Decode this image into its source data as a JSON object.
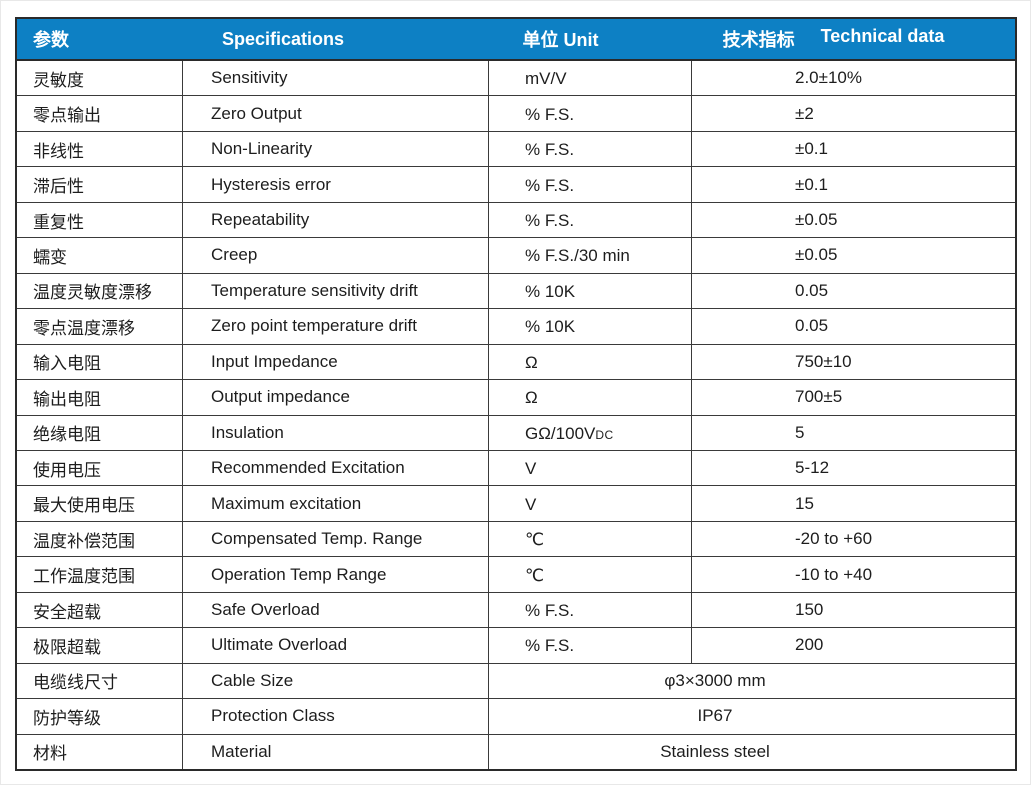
{
  "table": {
    "header": {
      "param_zh": "参数",
      "specifications": "Specifications",
      "unit": "单位 Unit",
      "tech_zh": "技术指标",
      "tech_en": "Technical data"
    },
    "colors": {
      "header_bg": "#0d80c4",
      "header_text": "#ffffff",
      "border": "#3a3a3a",
      "text": "#1d1d1d"
    },
    "rows": [
      {
        "zh": "灵敏度",
        "en": "Sensitivity",
        "unit": "mV/V",
        "value": "2.0±10%"
      },
      {
        "zh": "零点输出",
        "en": "Zero Output",
        "unit": "% F.S.",
        "value": "±2"
      },
      {
        "zh": "非线性",
        "en": "Non-Linearity",
        "unit": "% F.S.",
        "value": "±0.1"
      },
      {
        "zh": "滞后性",
        "en": "Hysteresis error",
        "unit": "% F.S.",
        "value": "±0.1"
      },
      {
        "zh": "重复性",
        "en": "Repeatability",
        "unit": "% F.S.",
        "value": "±0.05"
      },
      {
        "zh": "蠕变",
        "en": "Creep",
        "unit": "% F.S./30 min",
        "value": "±0.05"
      },
      {
        "zh": "温度灵敏度漂移",
        "en": "Temperature sensitivity drift",
        "unit": "% 10K",
        "value": "0.05"
      },
      {
        "zh": "零点温度漂移",
        "en": "Zero point temperature drift",
        "unit": "% 10K",
        "value": "0.05"
      },
      {
        "zh": "输入电阻",
        "en": "Input Impedance",
        "unit": "Ω",
        "value": "750±10"
      },
      {
        "zh": "输出电阻",
        "en": "Output impedance",
        "unit": "Ω",
        "value": "700±5"
      },
      {
        "zh": "绝缘电阻",
        "en": "Insulation",
        "unit": "GΩ/100V",
        "unit_sub": "DC",
        "value": "5"
      },
      {
        "zh": "使用电压",
        "en": "Recommended Excitation",
        "unit": "V",
        "value": "5-12"
      },
      {
        "zh": "最大使用电压",
        "en": "Maximum excitation",
        "unit": "V",
        "value": "15"
      },
      {
        "zh": "温度补偿范围",
        "en": "Compensated Temp. Range",
        "unit": "℃",
        "value": "-20 to +60"
      },
      {
        "zh": "工作温度范围",
        "en": "Operation Temp Range",
        "unit": "℃",
        "value": "-10 to +40"
      },
      {
        "zh": "安全超载",
        "en": "Safe Overload",
        "unit": "% F.S.",
        "value": "150"
      },
      {
        "zh": "极限超载",
        "en": "Ultimate Overload",
        "unit": "% F.S.",
        "value": "200"
      },
      {
        "zh": "电缆线尺寸",
        "en": "Cable Size",
        "merged": true,
        "value": "φ3×3000 mm"
      },
      {
        "zh": "防护等级",
        "en": "Protection Class",
        "merged": true,
        "value": "IP67"
      },
      {
        "zh": "材料",
        "en": "Material",
        "merged": true,
        "value": "Stainless steel"
      }
    ]
  }
}
